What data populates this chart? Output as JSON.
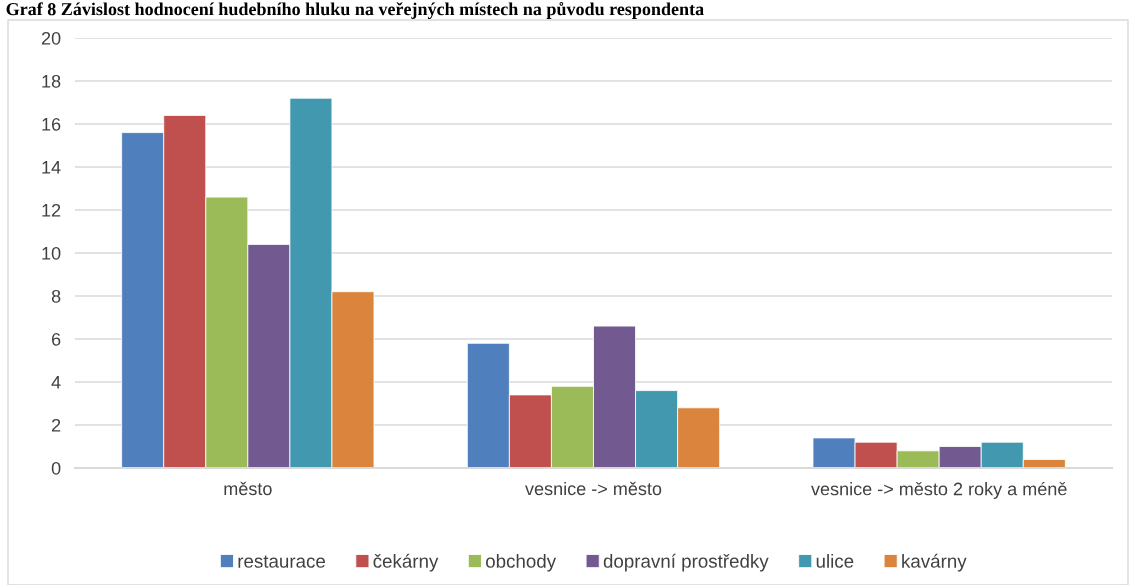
{
  "chart_data": {
    "type": "bar",
    "title": "Graf 8 Závislost hodnocení hudebního hluku na veřejných místech na původu respondenta",
    "categories": [
      "město",
      "vesnice -> město",
      "vesnice -> město 2 roky a méně"
    ],
    "series": [
      {
        "name": "restaurace",
        "color": "#4f7fbc",
        "values": [
          15.6,
          5.8,
          1.4
        ]
      },
      {
        "name": "čekárny",
        "color": "#c0504d",
        "values": [
          16.4,
          3.4,
          1.2
        ]
      },
      {
        "name": "obchody",
        "color": "#9bbb59",
        "values": [
          12.6,
          3.8,
          0.8
        ]
      },
      {
        "name": "dopravní prostředky",
        "color": "#72598f",
        "values": [
          10.4,
          6.6,
          1.0
        ]
      },
      {
        "name": "ulice",
        "color": "#4198af",
        "values": [
          17.2,
          3.6,
          1.2
        ]
      },
      {
        "name": "kavárny",
        "color": "#db843d",
        "values": [
          8.2,
          2.8,
          0.4
        ]
      }
    ],
    "ylim": [
      0,
      20
    ],
    "yticks": [
      0,
      2,
      4,
      6,
      8,
      10,
      12,
      14,
      16,
      18,
      20
    ],
    "grid": "y",
    "legend": "bottom"
  }
}
